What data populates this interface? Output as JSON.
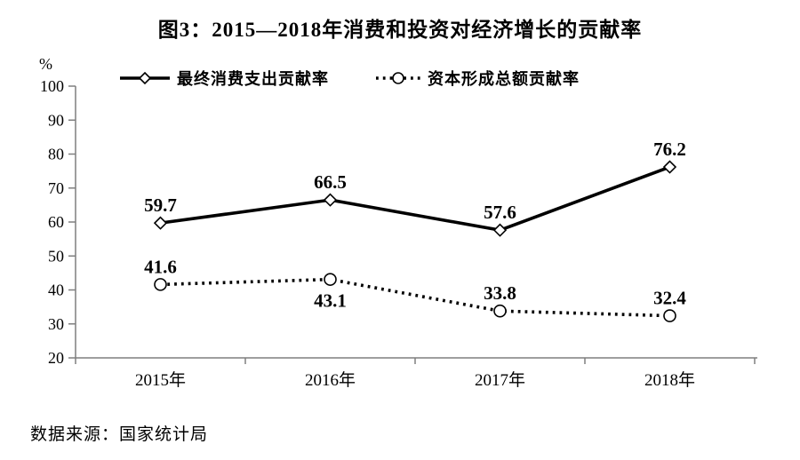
{
  "title": "图3：2015—2018年消费和投资对经济增长的贡献率",
  "y_unit": "%",
  "source": "数据来源：国家统计局",
  "chart_data": {
    "type": "line",
    "categories": [
      "2015年",
      "2016年",
      "2017年",
      "2018年"
    ],
    "series": [
      {
        "name": "最终消费支出贡献率",
        "values": [
          59.7,
          66.5,
          57.6,
          76.2
        ],
        "style": "solid",
        "marker": "diamond",
        "label_positions": [
          "above",
          "above",
          "above",
          "above"
        ]
      },
      {
        "name": "资本形成总额贡献率",
        "values": [
          41.6,
          43.1,
          33.8,
          32.4
        ],
        "style": "dotted",
        "marker": "circle",
        "label_positions": [
          "above",
          "below",
          "above",
          "above"
        ]
      }
    ],
    "ylim": [
      20,
      100
    ],
    "ytick_step": 10,
    "grid": false,
    "legend_position": "top",
    "colors": {
      "line": "#000000",
      "marker_fill": "#ffffff",
      "axis": "#7f7f7f",
      "text": "#000000"
    }
  }
}
